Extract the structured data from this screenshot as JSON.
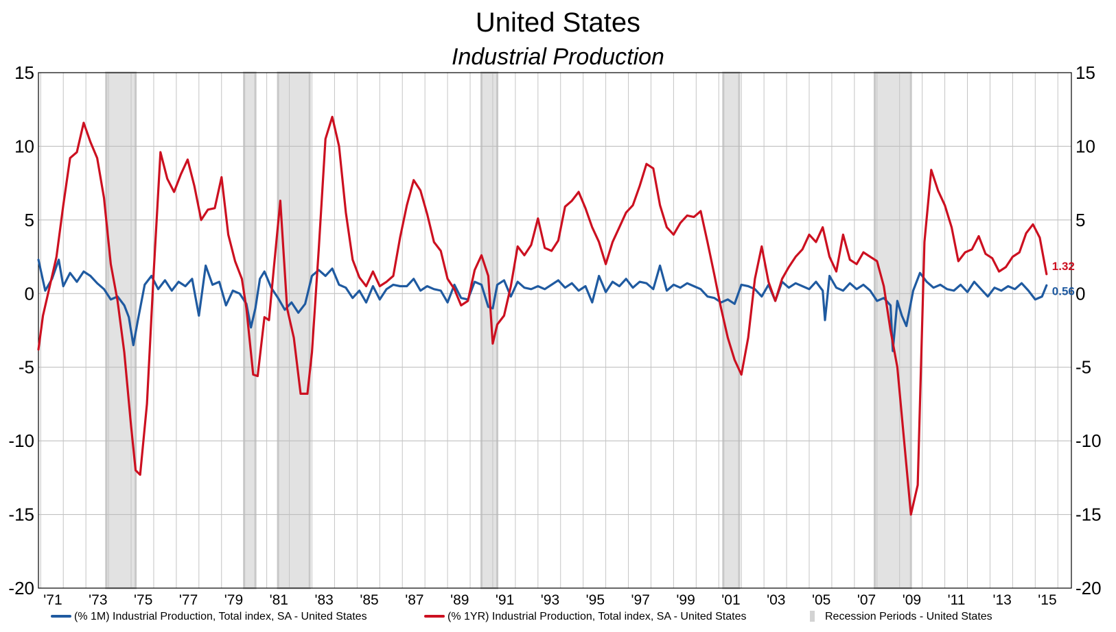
{
  "chart_data": {
    "type": "line",
    "title": "United States",
    "subtitle": "Industrial Production",
    "ylim": [
      -20,
      15
    ],
    "yticks": [
      "15",
      "10",
      "5",
      "0",
      "-5",
      "-10",
      "-15",
      "-20"
    ],
    "ytick_values": [
      15,
      10,
      5,
      0,
      -5,
      -10,
      -15,
      -20
    ],
    "xlim": [
      1970.9,
      2016.6
    ],
    "xticks": [
      "'71",
      "'73",
      "'75",
      "'77",
      "'79",
      "'81",
      "'83",
      "'85",
      "'87",
      "'89",
      "'91",
      "'93",
      "'95",
      "'97",
      "'99",
      "'01",
      "'03",
      "'05",
      "'07",
      "'09",
      "'11",
      "'13",
      "'15"
    ],
    "xtick_years": [
      1971,
      1973,
      1975,
      1977,
      1979,
      1981,
      1983,
      1985,
      1987,
      1989,
      1991,
      1993,
      1995,
      1997,
      1999,
      2001,
      2003,
      2005,
      2007,
      2009,
      2011,
      2013,
      2015
    ],
    "grid": true,
    "legend_position": "bottom",
    "recessions": [
      [
        1973.9,
        1975.2
      ],
      [
        1980.0,
        1980.5
      ],
      [
        1981.5,
        1982.9
      ],
      [
        1990.5,
        1991.2
      ],
      [
        2001.2,
        2001.9
      ],
      [
        2007.9,
        2009.5
      ]
    ],
    "series": [
      {
        "name": "(% 1M) Industrial Production, Total index, SA - United States",
        "color": "#1f5aa0",
        "end_label": "0.56",
        "x": [
          1970.9,
          1971.2,
          1971.5,
          1971.8,
          1972.0,
          1972.3,
          1972.6,
          1972.9,
          1973.2,
          1973.5,
          1973.8,
          1974.1,
          1974.4,
          1974.7,
          1974.9,
          1975.1,
          1975.3,
          1975.6,
          1975.9,
          1976.2,
          1976.5,
          1976.8,
          1977.1,
          1977.4,
          1977.7,
          1978.0,
          1978.3,
          1978.6,
          1978.9,
          1979.2,
          1979.5,
          1979.8,
          1980.1,
          1980.3,
          1980.5,
          1980.7,
          1980.9,
          1981.2,
          1981.5,
          1981.8,
          1982.1,
          1982.4,
          1982.7,
          1983.0,
          1983.3,
          1983.6,
          1983.9,
          1984.2,
          1984.5,
          1984.8,
          1985.1,
          1985.4,
          1985.7,
          1986.0,
          1986.3,
          1986.6,
          1986.9,
          1987.2,
          1987.5,
          1987.8,
          1988.1,
          1988.4,
          1988.7,
          1989.0,
          1989.3,
          1989.6,
          1989.9,
          1990.2,
          1990.5,
          1990.8,
          1991.0,
          1991.2,
          1991.5,
          1991.8,
          1992.1,
          1992.4,
          1992.7,
          1993.0,
          1993.3,
          1993.6,
          1993.9,
          1994.2,
          1994.5,
          1994.8,
          1995.1,
          1995.4,
          1995.7,
          1996.0,
          1996.3,
          1996.6,
          1996.9,
          1997.2,
          1997.5,
          1997.8,
          1998.1,
          1998.4,
          1998.7,
          1999.0,
          1999.3,
          1999.6,
          1999.9,
          2000.2,
          2000.5,
          2000.8,
          2001.1,
          2001.4,
          2001.7,
          2002.0,
          2002.3,
          2002.6,
          2002.9,
          2003.2,
          2003.5,
          2003.8,
          2004.1,
          2004.4,
          2004.7,
          2005.0,
          2005.3,
          2005.6,
          2005.7,
          2005.9,
          2006.2,
          2006.5,
          2006.8,
          2007.1,
          2007.4,
          2007.7,
          2008.0,
          2008.3,
          2008.6,
          2008.7,
          2008.9,
          2009.1,
          2009.3,
          2009.6,
          2009.9,
          2010.2,
          2010.5,
          2010.8,
          2011.1,
          2011.4,
          2011.7,
          2012.0,
          2012.3,
          2012.6,
          2012.9,
          2013.2,
          2013.5,
          2013.8,
          2014.1,
          2014.4,
          2014.7,
          2015.0,
          2015.3,
          2015.5
        ],
        "values": [
          2.3,
          0.2,
          1.0,
          2.3,
          0.5,
          1.4,
          0.8,
          1.5,
          1.2,
          0.7,
          0.3,
          -0.4,
          -0.2,
          -0.8,
          -1.6,
          -3.5,
          -1.8,
          0.6,
          1.2,
          0.3,
          0.9,
          0.2,
          0.8,
          0.5,
          1.0,
          -1.5,
          1.9,
          0.6,
          0.8,
          -0.8,
          0.2,
          0.0,
          -0.7,
          -2.3,
          -1.0,
          1.0,
          1.5,
          0.4,
          -0.3,
          -1.1,
          -0.6,
          -1.3,
          -0.7,
          1.2,
          1.6,
          1.2,
          1.7,
          0.6,
          0.4,
          -0.3,
          0.2,
          -0.6,
          0.5,
          -0.4,
          0.3,
          0.6,
          0.5,
          0.5,
          1.0,
          0.2,
          0.5,
          0.3,
          0.2,
          -0.6,
          0.6,
          -0.3,
          -0.4,
          0.8,
          0.6,
          -0.9,
          -1.0,
          0.6,
          0.9,
          -0.2,
          0.8,
          0.4,
          0.3,
          0.5,
          0.3,
          0.6,
          0.9,
          0.4,
          0.7,
          0.2,
          0.5,
          -0.6,
          1.2,
          0.1,
          0.8,
          0.5,
          1.0,
          0.4,
          0.8,
          0.7,
          0.3,
          1.9,
          0.2,
          0.6,
          0.4,
          0.7,
          0.5,
          0.3,
          -0.2,
          -0.3,
          -0.6,
          -0.4,
          -0.7,
          0.6,
          0.5,
          0.3,
          -0.2,
          0.6,
          -0.5,
          0.8,
          0.4,
          0.7,
          0.5,
          0.3,
          0.8,
          0.2,
          -1.8,
          1.2,
          0.4,
          0.2,
          0.7,
          0.3,
          0.6,
          0.2,
          -0.5,
          -0.3,
          -0.8,
          -3.9,
          -0.5,
          -1.5,
          -2.2,
          0.2,
          1.4,
          0.8,
          0.4,
          0.6,
          0.3,
          0.2,
          0.6,
          0.1,
          0.8,
          0.3,
          -0.2,
          0.4,
          0.2,
          0.5,
          0.3,
          0.7,
          0.2,
          -0.4,
          -0.2,
          0.56
        ]
      },
      {
        "name": "(% 1YR) Industrial Production, Total index, SA - United States",
        "color": "#cc1020",
        "end_label": "1.32",
        "x": [
          1970.9,
          1971.1,
          1971.4,
          1971.7,
          1972.0,
          1972.3,
          1972.6,
          1972.9,
          1973.2,
          1973.5,
          1973.8,
          1974.1,
          1974.4,
          1974.7,
          1975.0,
          1975.2,
          1975.4,
          1975.7,
          1976.0,
          1976.3,
          1976.6,
          1976.9,
          1977.2,
          1977.5,
          1977.8,
          1978.1,
          1978.4,
          1978.7,
          1979.0,
          1979.3,
          1979.6,
          1979.9,
          1980.1,
          1980.4,
          1980.6,
          1980.9,
          1981.1,
          1981.3,
          1981.6,
          1981.9,
          1982.2,
          1982.5,
          1982.8,
          1983.0,
          1983.3,
          1983.6,
          1983.9,
          1984.2,
          1984.5,
          1984.8,
          1985.1,
          1985.4,
          1985.7,
          1986.0,
          1986.3,
          1986.6,
          1986.9,
          1987.2,
          1987.5,
          1987.8,
          1988.1,
          1988.4,
          1988.7,
          1989.0,
          1989.3,
          1989.6,
          1989.9,
          1990.2,
          1990.5,
          1990.8,
          1991.0,
          1991.2,
          1991.5,
          1991.8,
          1992.1,
          1992.4,
          1992.7,
          1993.0,
          1993.3,
          1993.6,
          1993.9,
          1994.2,
          1994.5,
          1994.8,
          1995.1,
          1995.4,
          1995.7,
          1996.0,
          1996.3,
          1996.6,
          1996.9,
          1997.2,
          1997.5,
          1997.8,
          1998.1,
          1998.4,
          1998.7,
          1999.0,
          1999.3,
          1999.6,
          1999.9,
          2000.2,
          2000.5,
          2000.8,
          2001.1,
          2001.4,
          2001.7,
          2002.0,
          2002.3,
          2002.6,
          2002.9,
          2003.2,
          2003.5,
          2003.8,
          2004.1,
          2004.4,
          2004.7,
          2005.0,
          2005.3,
          2005.6,
          2005.9,
          2006.2,
          2006.5,
          2006.8,
          2007.1,
          2007.4,
          2007.7,
          2008.0,
          2008.3,
          2008.6,
          2008.9,
          2009.2,
          2009.5,
          2009.8,
          2010.1,
          2010.4,
          2010.7,
          2011.0,
          2011.3,
          2011.6,
          2011.9,
          2012.2,
          2012.5,
          2012.8,
          2013.1,
          2013.4,
          2013.7,
          2014.0,
          2014.3,
          2014.6,
          2014.9,
          2015.2,
          2015.5
        ],
        "values": [
          -3.8,
          -1.5,
          0.5,
          2.5,
          6.0,
          9.2,
          9.6,
          11.6,
          10.3,
          9.2,
          6.5,
          2.0,
          -0.5,
          -4.0,
          -9.0,
          -12.0,
          -12.3,
          -7.5,
          1.5,
          9.6,
          7.8,
          6.9,
          8.1,
          9.1,
          7.3,
          5.0,
          5.7,
          5.8,
          7.9,
          4.0,
          2.2,
          1.0,
          -1.0,
          -5.5,
          -5.6,
          -1.6,
          -1.8,
          1.5,
          6.3,
          -1.0,
          -3.0,
          -6.8,
          -6.8,
          -4.0,
          3.0,
          10.5,
          12.0,
          10.0,
          5.5,
          2.3,
          1.1,
          0.5,
          1.5,
          0.5,
          0.8,
          1.2,
          3.8,
          6.0,
          7.7,
          7.0,
          5.4,
          3.5,
          2.9,
          1.0,
          0.3,
          -0.8,
          -0.5,
          1.6,
          2.6,
          1.2,
          -3.4,
          -2.1,
          -1.5,
          0.5,
          3.2,
          2.6,
          3.3,
          5.1,
          3.1,
          2.9,
          3.6,
          5.9,
          6.3,
          6.9,
          5.8,
          4.5,
          3.5,
          2.0,
          3.5,
          4.5,
          5.5,
          6.0,
          7.3,
          8.8,
          8.5,
          6.0,
          4.5,
          4.0,
          4.8,
          5.3,
          5.2,
          5.6,
          3.5,
          1.3,
          -1.0,
          -3.0,
          -4.5,
          -5.5,
          -3.0,
          1.0,
          3.2,
          0.8,
          -0.5,
          1.0,
          1.8,
          2.5,
          3.0,
          4.0,
          3.5,
          4.5,
          2.5,
          1.5,
          4.0,
          2.3,
          2.0,
          2.8,
          2.5,
          2.2,
          0.5,
          -2.5,
          -5.0,
          -10.0,
          -15.0,
          -13.0,
          3.5,
          8.4,
          7.0,
          6.0,
          4.5,
          2.2,
          2.8,
          3.0,
          3.9,
          2.7,
          2.4,
          1.5,
          1.8,
          2.5,
          2.8,
          4.1,
          4.7,
          3.8,
          1.32
        ]
      }
    ],
    "legend": [
      {
        "label": "(% 1M) Industrial Production, Total index, SA - United States",
        "color": "#1f5aa0",
        "kind": "line"
      },
      {
        "label": "(% 1YR) Industrial Production, Total index, SA - United States",
        "color": "#cc1020",
        "kind": "line"
      },
      {
        "label": "Recession Periods - United States",
        "color": "#d3d3d3",
        "kind": "band"
      }
    ]
  }
}
